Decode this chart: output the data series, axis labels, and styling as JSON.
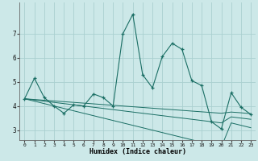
{
  "xlabel": "Humidex (Indice chaleur)",
  "background_color": "#cce8e8",
  "grid_color": "#aad0d0",
  "line_color": "#1a6e64",
  "x_values": [
    0,
    1,
    2,
    3,
    4,
    5,
    6,
    7,
    8,
    9,
    10,
    11,
    12,
    13,
    14,
    15,
    16,
    17,
    18,
    19,
    20,
    21,
    22,
    23
  ],
  "y_main": [
    4.3,
    5.15,
    4.35,
    4.0,
    3.7,
    4.05,
    4.0,
    4.5,
    4.35,
    4.0,
    7.0,
    7.8,
    5.3,
    4.75,
    6.05,
    6.6,
    6.35,
    5.05,
    4.85,
    3.35,
    3.05,
    4.55,
    3.95,
    3.65
  ],
  "y_trend1": [
    4.3,
    4.27,
    4.24,
    4.21,
    4.18,
    4.15,
    4.12,
    4.09,
    4.06,
    4.03,
    4.0,
    3.97,
    3.94,
    3.91,
    3.88,
    3.85,
    3.82,
    3.79,
    3.76,
    3.73,
    3.7,
    3.75,
    3.72,
    3.68
  ],
  "y_trend2": [
    4.3,
    4.25,
    4.2,
    4.15,
    4.1,
    4.05,
    4.0,
    3.95,
    3.9,
    3.85,
    3.8,
    3.75,
    3.7,
    3.65,
    3.6,
    3.55,
    3.5,
    3.45,
    3.4,
    3.35,
    3.3,
    3.55,
    3.5,
    3.45
  ],
  "y_trend3": [
    4.3,
    4.2,
    4.1,
    4.0,
    3.9,
    3.8,
    3.7,
    3.6,
    3.5,
    3.4,
    3.3,
    3.2,
    3.1,
    3.0,
    2.9,
    2.8,
    2.7,
    2.6,
    2.5,
    2.4,
    2.3,
    3.3,
    3.2,
    3.1
  ],
  "xlim": [
    -0.5,
    23.5
  ],
  "ylim": [
    2.6,
    8.3
  ],
  "yticks": [
    3,
    4,
    5,
    6,
    7
  ],
  "xticks": [
    0,
    1,
    2,
    3,
    4,
    5,
    6,
    7,
    8,
    9,
    10,
    11,
    12,
    13,
    14,
    15,
    16,
    17,
    18,
    19,
    20,
    21,
    22,
    23
  ],
  "figsize": [
    3.2,
    2.0
  ],
  "dpi": 100
}
